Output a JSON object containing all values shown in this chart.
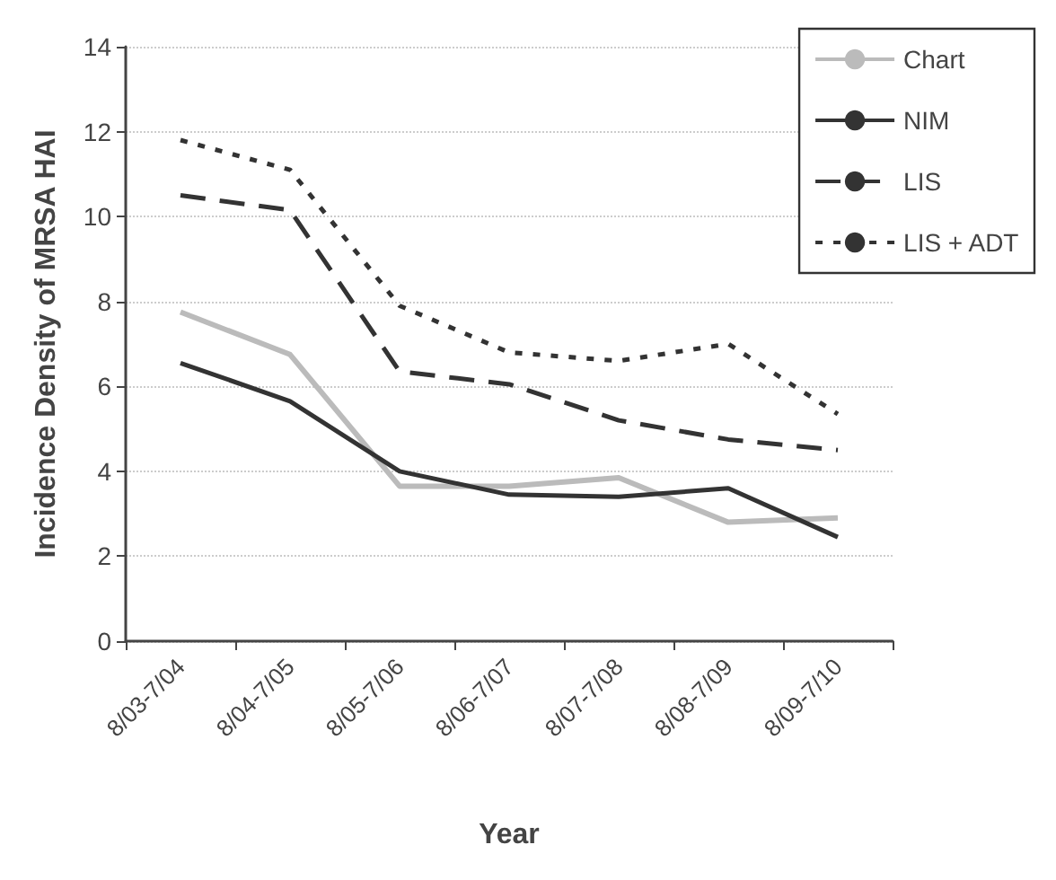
{
  "chart_data": {
    "type": "line",
    "xlabel": "Year",
    "ylabel": "Incidence Density of MRSA HAI",
    "categories": [
      "8/03-7/04",
      "8/04-7/05",
      "8/05-7/06",
      "8/06-7/07",
      "8/07-7/08",
      "8/08-7/09",
      "8/09-7/10"
    ],
    "series": [
      {
        "name": "Chart",
        "color": "#bbbbbb",
        "line_style": "solid",
        "values": [
          7.75,
          6.75,
          3.65,
          3.65,
          3.85,
          2.8,
          2.9
        ]
      },
      {
        "name": "NIM",
        "color": "#333333",
        "line_style": "solid",
        "values": [
          6.55,
          5.65,
          4.0,
          3.45,
          3.4,
          3.6,
          2.45
        ]
      },
      {
        "name": "LIS",
        "color": "#333333",
        "line_style": "dashed",
        "values": [
          10.5,
          10.15,
          6.35,
          6.05,
          5.2,
          4.75,
          4.5
        ]
      },
      {
        "name": "LIS + ADT",
        "color": "#333333",
        "line_style": "dotted",
        "values": [
          11.8,
          11.1,
          7.9,
          6.8,
          6.6,
          7.0,
          5.35
        ]
      }
    ],
    "ylim": [
      0,
      14
    ],
    "yticks": [
      0,
      2,
      4,
      6,
      8,
      10,
      12,
      14
    ],
    "grid": "y",
    "legend": "top right",
    "marker": "none"
  }
}
